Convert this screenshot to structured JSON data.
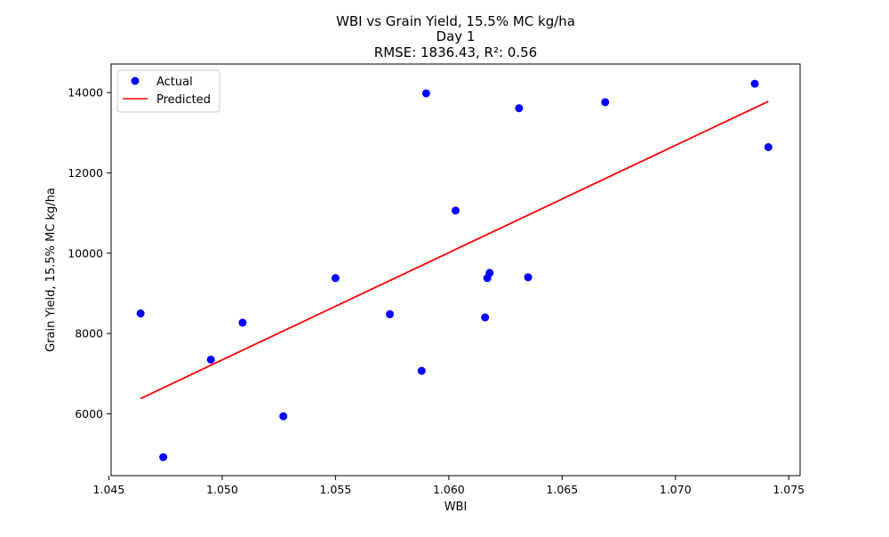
{
  "chart_data": {
    "type": "scatter",
    "title_lines": [
      "WBI vs Grain Yield, 15.5% MC kg/ha",
      "Day 1",
      "RMSE: 1836.43, R²: 0.56"
    ],
    "xlabel": "WBI",
    "ylabel": "Grain Yield, 15.5% MC kg/ha",
    "xlim": [
      1.0451,
      1.0755
    ],
    "ylim": [
      4460,
      14710
    ],
    "xticks": [
      {
        "value": 1.045,
        "label": "1.045"
      },
      {
        "value": 1.05,
        "label": "1.050"
      },
      {
        "value": 1.055,
        "label": "1.055"
      },
      {
        "value": 1.06,
        "label": "1.060"
      },
      {
        "value": 1.065,
        "label": "1.065"
      },
      {
        "value": 1.07,
        "label": "1.070"
      },
      {
        "value": 1.075,
        "label": "1.075"
      }
    ],
    "yticks": [
      {
        "value": 6000,
        "label": "6000"
      },
      {
        "value": 8000,
        "label": "8000"
      },
      {
        "value": 10000,
        "label": "10000"
      },
      {
        "value": 12000,
        "label": "12000"
      },
      {
        "value": 14000,
        "label": "14000"
      }
    ],
    "grid": false,
    "legend_position": "top-left",
    "series": [
      {
        "name": "Actual",
        "kind": "scatter",
        "color": "#0000ff",
        "points": [
          {
            "x": 1.0464,
            "y": 8500
          },
          {
            "x": 1.0474,
            "y": 4920
          },
          {
            "x": 1.0495,
            "y": 7350
          },
          {
            "x": 1.0509,
            "y": 8270
          },
          {
            "x": 1.0527,
            "y": 5940
          },
          {
            "x": 1.055,
            "y": 9380
          },
          {
            "x": 1.0574,
            "y": 8480
          },
          {
            "x": 1.0588,
            "y": 7070
          },
          {
            "x": 1.059,
            "y": 13980
          },
          {
            "x": 1.0603,
            "y": 11060
          },
          {
            "x": 1.0616,
            "y": 8400
          },
          {
            "x": 1.0617,
            "y": 9380
          },
          {
            "x": 1.0618,
            "y": 9510
          },
          {
            "x": 1.0631,
            "y": 13610
          },
          {
            "x": 1.0635,
            "y": 9400
          },
          {
            "x": 1.0669,
            "y": 13760
          },
          {
            "x": 1.0735,
            "y": 14220
          },
          {
            "x": 1.0741,
            "y": 12640
          }
        ]
      },
      {
        "name": "Predicted",
        "kind": "line",
        "color": "#ff0000",
        "points": [
          {
            "x": 1.0464,
            "y": 6380
          },
          {
            "x": 1.0741,
            "y": 13780
          }
        ]
      }
    ]
  }
}
